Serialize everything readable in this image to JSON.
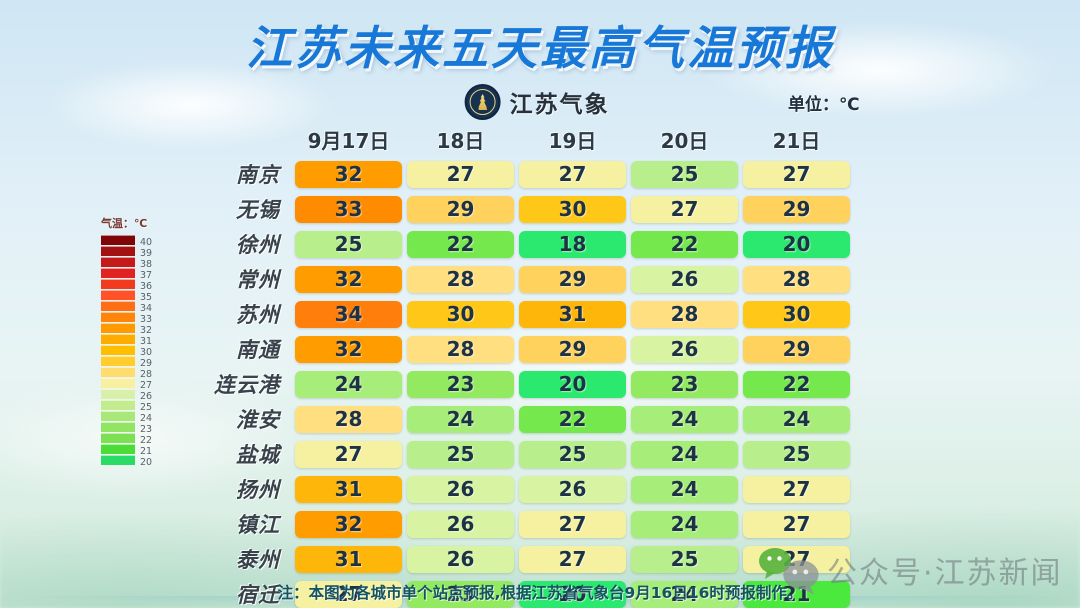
{
  "title": "江苏未来五天最高气温预报",
  "logo": {
    "name": "江苏气象"
  },
  "unit_label": "单位：℃",
  "legend": {
    "title": "气温：℃",
    "stops": [
      {
        "temp": "40",
        "color": "#7f0606"
      },
      {
        "temp": "39",
        "color": "#a31212"
      },
      {
        "temp": "38",
        "color": "#c41a1a"
      },
      {
        "temp": "37",
        "color": "#e02222"
      },
      {
        "temp": "36",
        "color": "#f23a1f"
      },
      {
        "temp": "35",
        "color": "#ff5228"
      },
      {
        "temp": "34",
        "color": "#ff6e14"
      },
      {
        "temp": "33",
        "color": "#ff860a"
      },
      {
        "temp": "32",
        "color": "#ff9a00"
      },
      {
        "temp": "31",
        "color": "#ffac00"
      },
      {
        "temp": "30",
        "color": "#ffbe00"
      },
      {
        "temp": "29",
        "color": "#ffce2e"
      },
      {
        "temp": "28",
        "color": "#ffdc6e"
      },
      {
        "temp": "27",
        "color": "#f8f0a0"
      },
      {
        "temp": "26",
        "color": "#d8f0a8"
      },
      {
        "temp": "25",
        "color": "#c2ec8f"
      },
      {
        "temp": "24",
        "color": "#a8e878"
      },
      {
        "temp": "23",
        "color": "#92e465"
      },
      {
        "temp": "22",
        "color": "#7ce052"
      },
      {
        "temp": "21",
        "color": "#4cdc38"
      },
      {
        "temp": "20",
        "color": "#2adc66"
      }
    ]
  },
  "chart_data": {
    "type": "heatmap",
    "title": "江苏未来五天最高气温预报",
    "unit": "℃",
    "categories": [
      "9月17日",
      "18日",
      "19日",
      "20日",
      "21日"
    ],
    "series": [
      {
        "name": "南京",
        "values": [
          32,
          27,
          27,
          25,
          27
        ]
      },
      {
        "name": "无锡",
        "values": [
          33,
          29,
          30,
          27,
          29
        ]
      },
      {
        "name": "徐州",
        "values": [
          25,
          22,
          18,
          22,
          20
        ]
      },
      {
        "name": "常州",
        "values": [
          32,
          28,
          29,
          26,
          28
        ]
      },
      {
        "name": "苏州",
        "values": [
          34,
          30,
          31,
          28,
          30
        ]
      },
      {
        "name": "南通",
        "values": [
          32,
          28,
          29,
          26,
          29
        ]
      },
      {
        "name": "连云港",
        "values": [
          24,
          23,
          20,
          23,
          22
        ]
      },
      {
        "name": "淮安",
        "values": [
          28,
          24,
          22,
          24,
          24
        ]
      },
      {
        "name": "盐城",
        "values": [
          27,
          25,
          25,
          24,
          25
        ]
      },
      {
        "name": "扬州",
        "values": [
          31,
          26,
          26,
          24,
          27
        ]
      },
      {
        "name": "镇江",
        "values": [
          32,
          26,
          27,
          24,
          27
        ]
      },
      {
        "name": "泰州",
        "values": [
          31,
          26,
          27,
          25,
          27
        ]
      },
      {
        "name": "宿迁",
        "values": [
          27,
          23,
          20,
          24,
          21
        ]
      }
    ],
    "color_scale_range": [
      20,
      40
    ],
    "legend_position": "left"
  },
  "temp_colors": {
    "18": "#2be96e",
    "20": "#2be96e",
    "21": "#4be83e",
    "22": "#74e84c",
    "23": "#93ea60",
    "24": "#a7ed79",
    "25": "#b8ef8c",
    "26": "#d8f3a2",
    "27": "#f5f1a0",
    "28": "#ffdf80",
    "29": "#ffd25e",
    "30": "#ffc818",
    "31": "#ffb60a",
    "32": "#ff9c00",
    "33": "#ff8c00",
    "34": "#ff7e0c"
  },
  "footnote": "注：本图为各城市单个站点预报,根据江苏省气象台9月16日16时预报制作。",
  "watermark": "公众号·江苏新闻"
}
